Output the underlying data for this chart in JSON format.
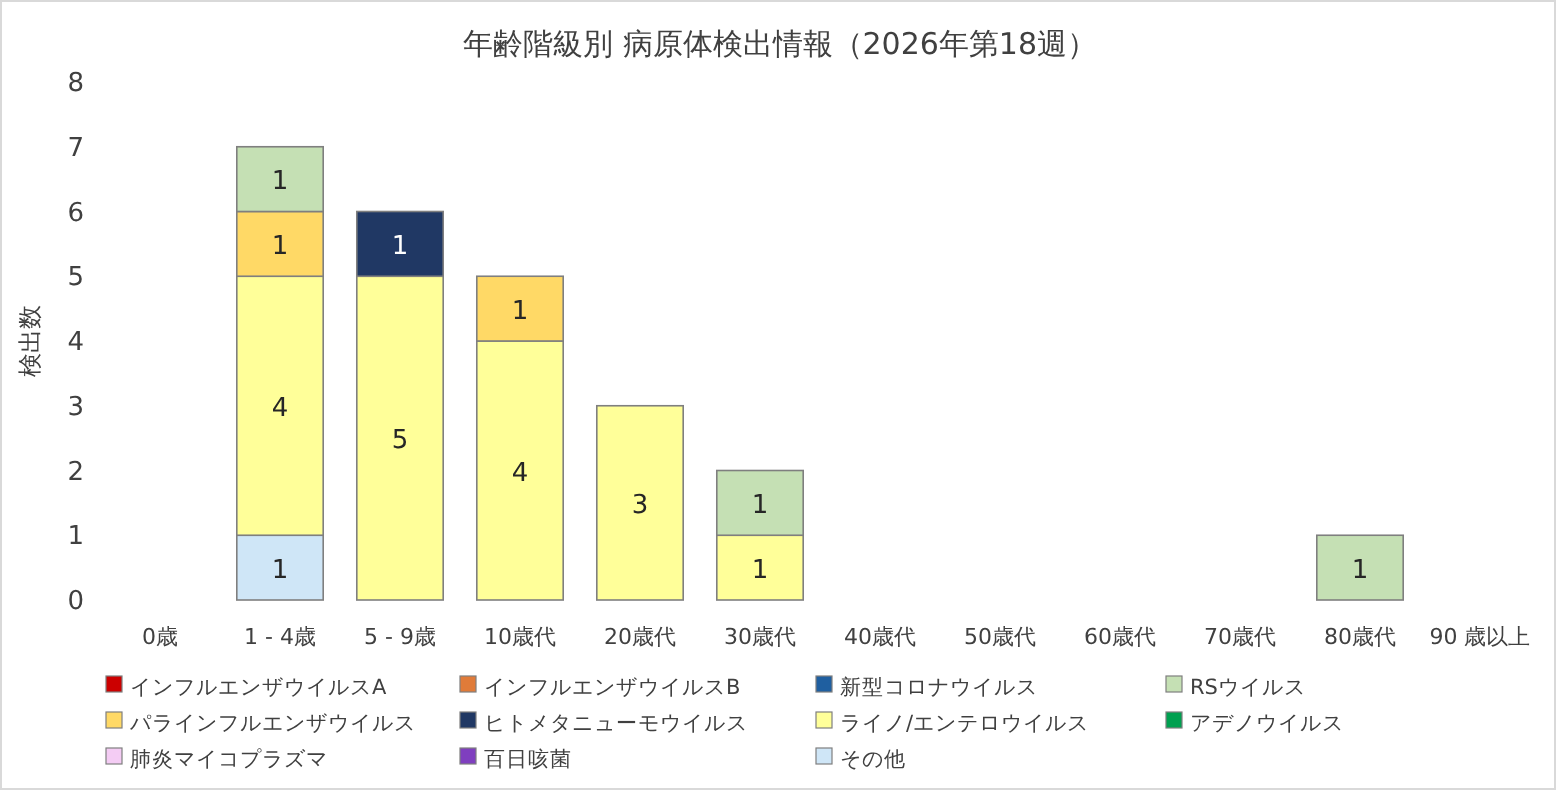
{
  "chart_data": {
    "type": "bar",
    "stacked": true,
    "title": "年齢階級別 病原体検出情報（2026年第18週）",
    "ylabel": "検出数",
    "categories": [
      "0歳",
      "1 - 4歳",
      "5 - 9歳",
      "10歳代",
      "20歳代",
      "30歳代",
      "40歳代",
      "50歳代",
      "60歳代",
      "70歳代",
      "80歳代",
      "90 歳以上"
    ],
    "ylim": [
      0,
      8
    ],
    "yticks": [
      0,
      1,
      2,
      3,
      4,
      5,
      6,
      7,
      8
    ],
    "grid": false,
    "legend": "bottom",
    "data_labels": true,
    "series": [
      {
        "name": "その他",
        "color": "#cfe6f7",
        "values": [
          null,
          1,
          null,
          null,
          null,
          null,
          null,
          null,
          null,
          null,
          null,
          null
        ]
      },
      {
        "name": "百日咳菌",
        "color": "#7f3fbf",
        "values": [
          null,
          null,
          null,
          null,
          null,
          null,
          null,
          null,
          null,
          null,
          null,
          null
        ]
      },
      {
        "name": "肺炎マイコプラズマ",
        "color": "#f4ccf4",
        "values": [
          null,
          null,
          null,
          null,
          null,
          null,
          null,
          null,
          null,
          null,
          null,
          null
        ]
      },
      {
        "name": "アデノウイルス",
        "color": "#00a050",
        "values": [
          null,
          null,
          null,
          null,
          null,
          null,
          null,
          null,
          null,
          null,
          null,
          null
        ]
      },
      {
        "name": "ライノ/エンテロウイルス",
        "color": "#ffff99",
        "values": [
          null,
          4,
          5,
          4,
          3,
          1,
          null,
          null,
          null,
          null,
          null,
          null
        ]
      },
      {
        "name": "ヒトメタニューモウイルス",
        "color": "#203864",
        "values": [
          null,
          null,
          1,
          null,
          null,
          null,
          null,
          null,
          null,
          null,
          null,
          null
        ]
      },
      {
        "name": "パラインフルエンザウイルス",
        "color": "#ffd966",
        "values": [
          null,
          1,
          null,
          1,
          null,
          null,
          null,
          null,
          null,
          null,
          null,
          null
        ]
      },
      {
        "name": "RSウイルス",
        "color": "#c5e0b4",
        "values": [
          null,
          1,
          null,
          null,
          null,
          1,
          null,
          null,
          null,
          null,
          1,
          null
        ]
      },
      {
        "name": "新型コロナウイルス",
        "color": "#1f5fa0",
        "values": [
          null,
          null,
          null,
          null,
          null,
          null,
          null,
          null,
          null,
          null,
          null,
          null
        ]
      },
      {
        "name": "インフルエンザウイルスB",
        "color": "#e07b39",
        "values": [
          null,
          null,
          null,
          null,
          null,
          null,
          null,
          null,
          null,
          null,
          null,
          null
        ]
      },
      {
        "name": "インフルエンザウイルスA",
        "color": "#cc0000",
        "values": [
          null,
          null,
          null,
          null,
          null,
          null,
          null,
          null,
          null,
          null,
          null,
          null
        ]
      }
    ]
  }
}
